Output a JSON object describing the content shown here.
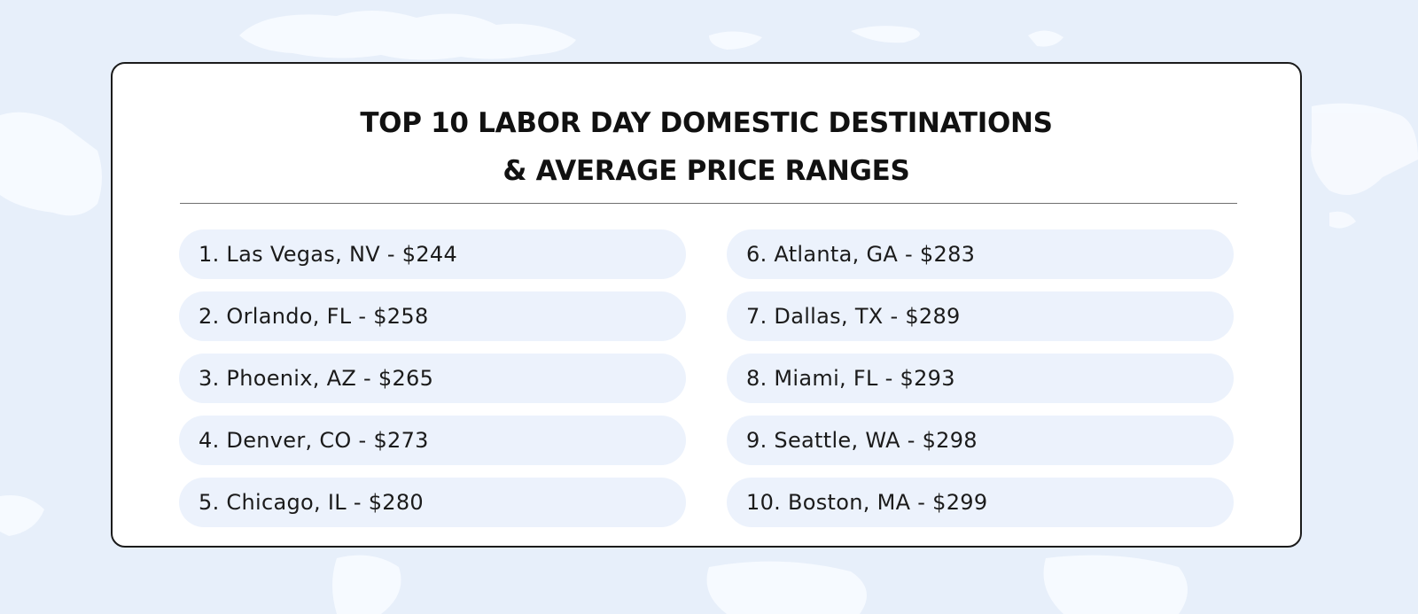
{
  "title": {
    "line1": "TOP 10 LABOR DAY DOMESTIC DESTINATIONS",
    "line2": "& AVERAGE PRICE RANGES"
  },
  "left_column": [
    {
      "text": "1. Las Vegas, NV - $244"
    },
    {
      "text": "2. Orlando, FL - $258"
    },
    {
      "text": "3. Phoenix, AZ - $265"
    },
    {
      "text": "4. Denver, CO - $273"
    },
    {
      "text": "5. Chicago, IL - $280"
    }
  ],
  "right_column": [
    {
      "text": "6. Atlanta, GA - $283"
    },
    {
      "text": "7. Dallas, TX - $289"
    },
    {
      "text": "8. Miami, FL - $293"
    },
    {
      "text": "9. Seattle, WA - $298"
    },
    {
      "text": "10. Boston, MA - $299"
    }
  ],
  "colors": {
    "background": "#e7effa",
    "card": "#ffffff",
    "item_background": "#ecf2fc",
    "text": "#1b1b1b"
  }
}
